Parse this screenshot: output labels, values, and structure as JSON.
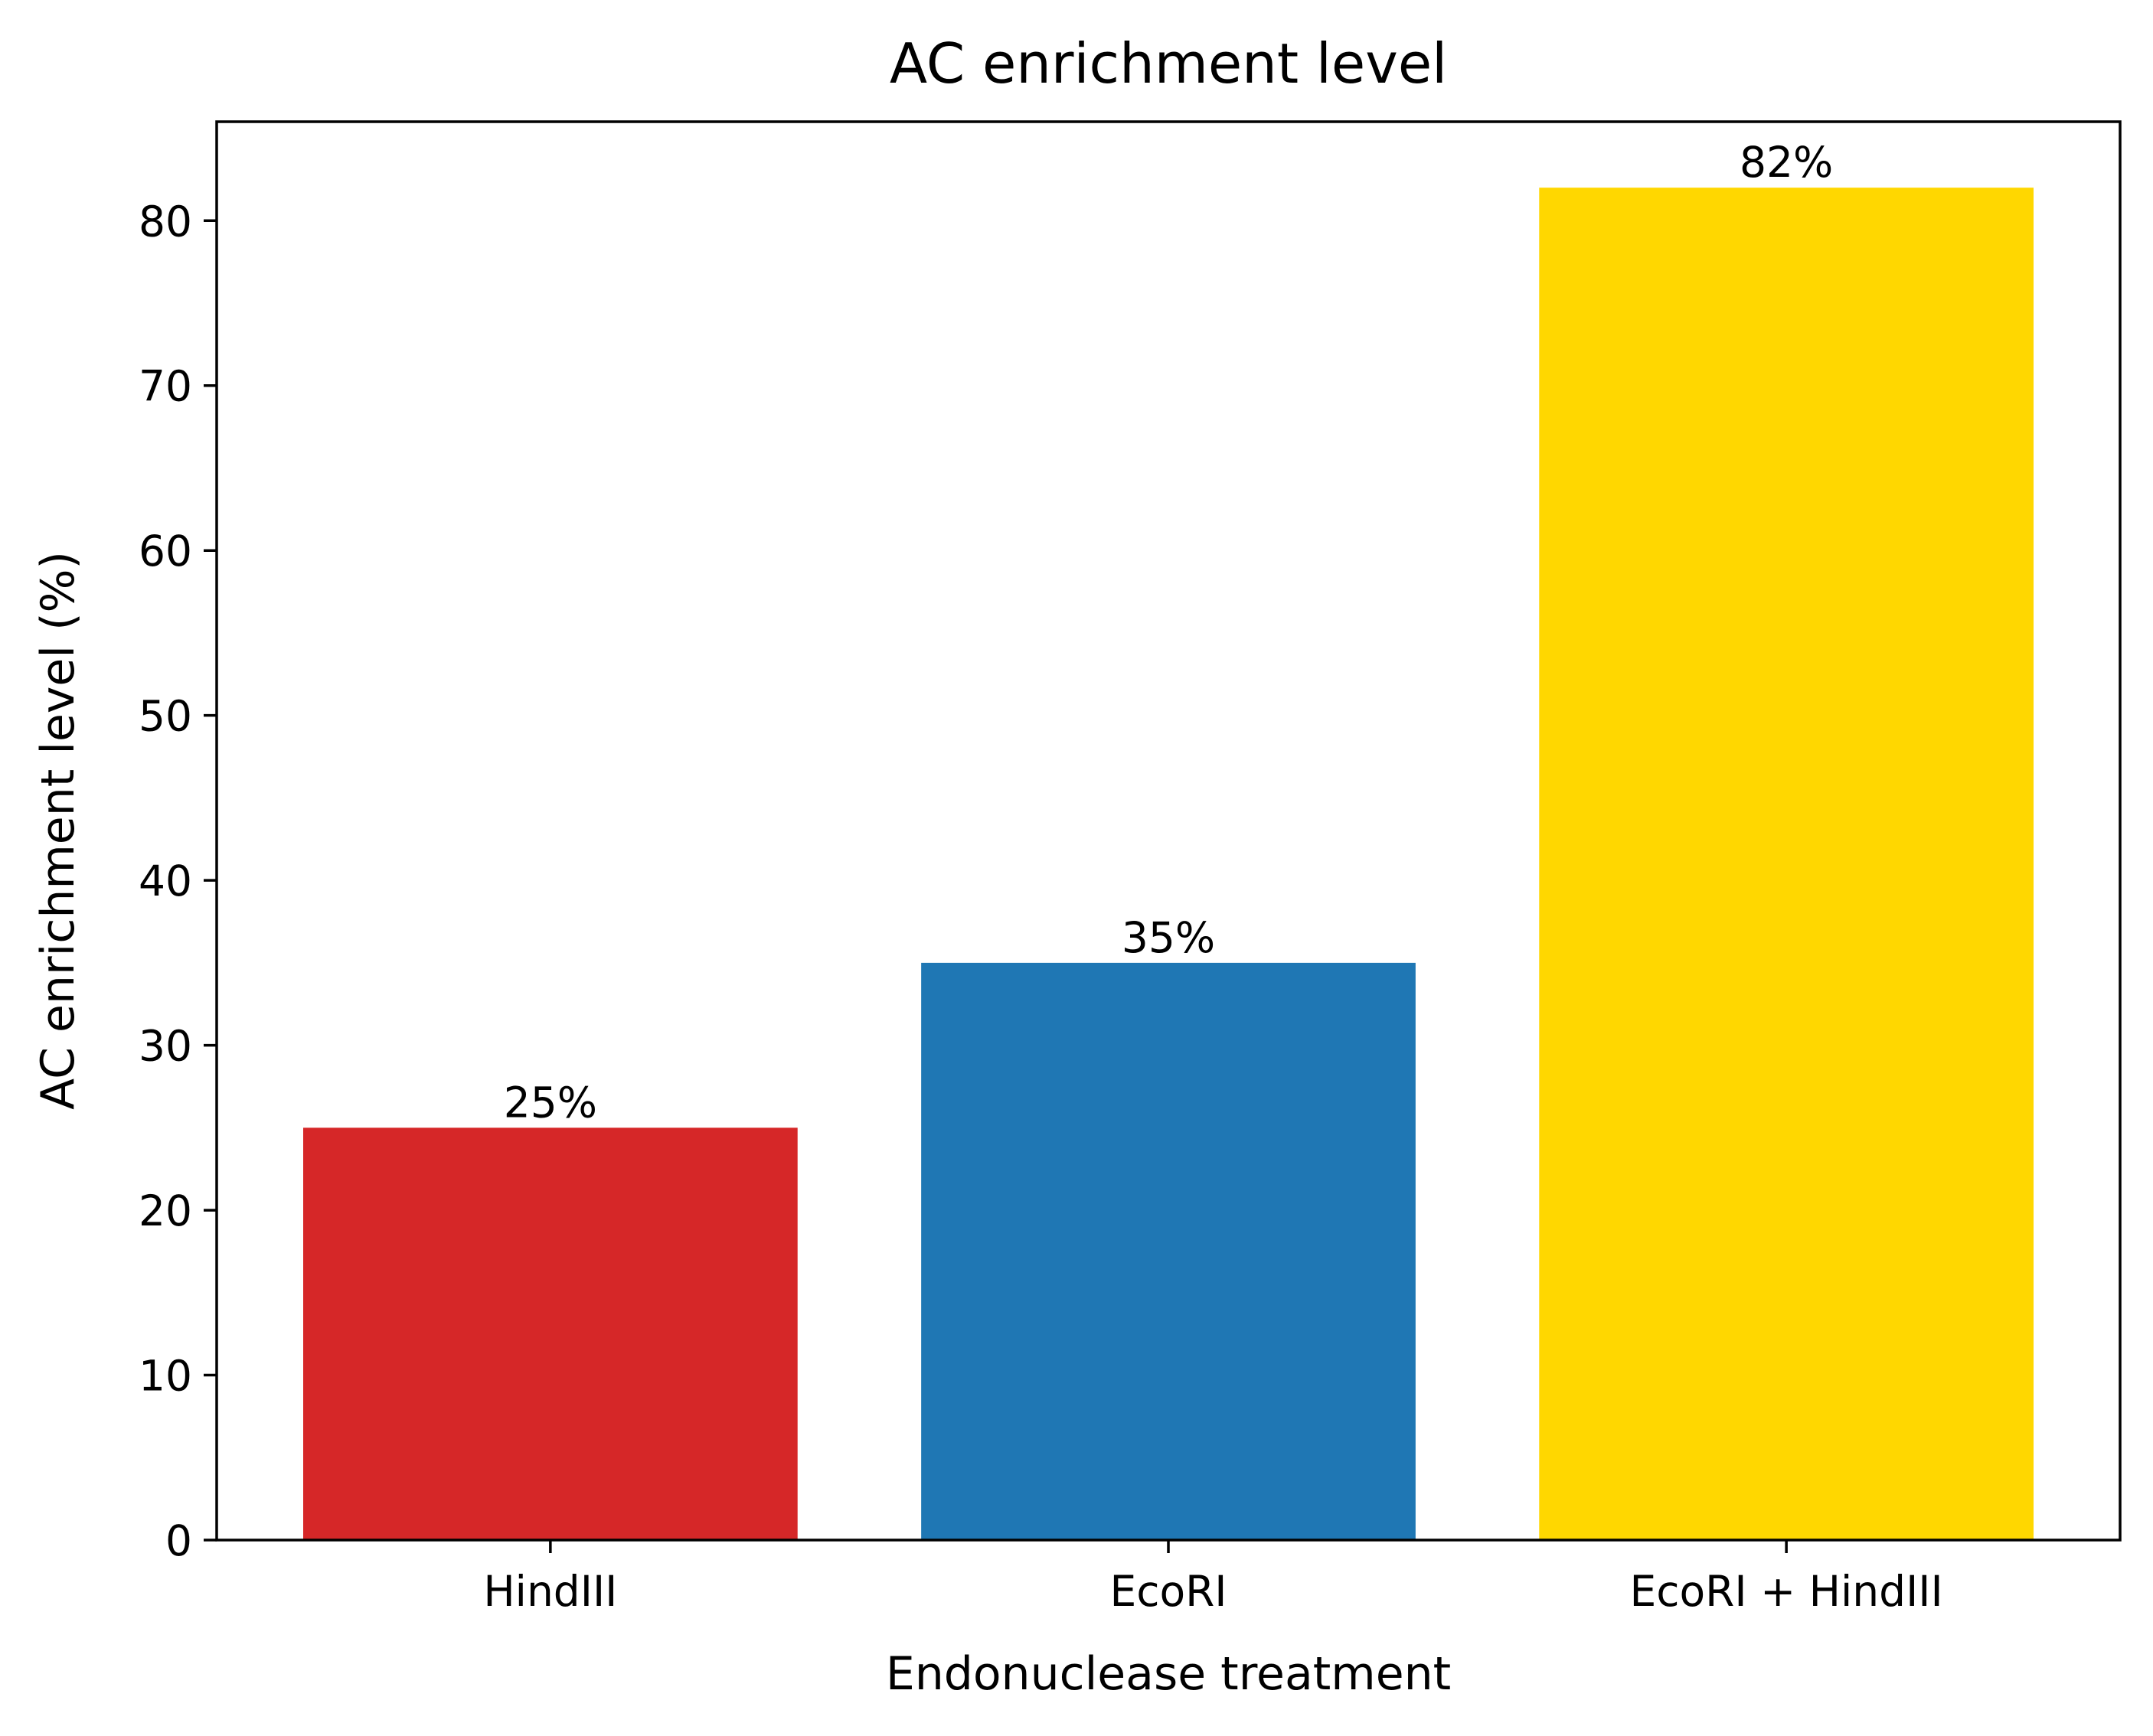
{
  "chart_data": {
    "type": "bar",
    "title": "AC enrichment level",
    "xlabel": "Endonuclease treatment",
    "ylabel": "AC enrichment level (%)",
    "categories": [
      "HindIII",
      "EcoRI",
      "EcoRI + HindIII"
    ],
    "values": [
      25,
      35,
      82
    ],
    "value_labels": [
      "25%",
      "35%",
      "82%"
    ],
    "colors": [
      "#d62728",
      "#1f77b4",
      "#ffd700"
    ],
    "ylim": [
      0,
      86
    ],
    "yticks": [
      0,
      10,
      20,
      30,
      40,
      50,
      60,
      70,
      80
    ],
    "grid": false,
    "legend": "none"
  }
}
